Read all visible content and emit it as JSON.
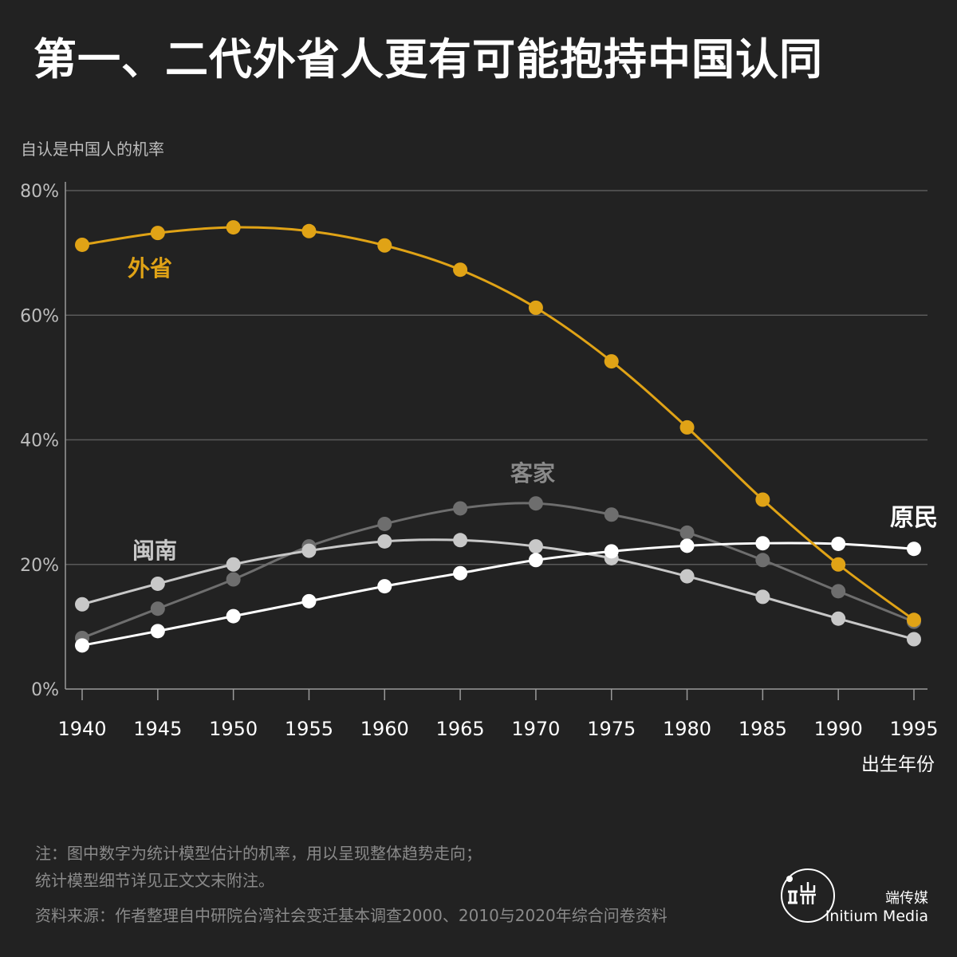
{
  "title": "第一、二代外省人更有可能抱持中国认同",
  "notes": {
    "line1": "注：图中数字为统计模型估计的机率，用以呈现整体趋势走向；",
    "line2": "统计模型细节详见正文文末附注。",
    "source": "资料来源：作者整理自中研院台湾社会变迁基本调查2000、2010与2020年综合问卷资料"
  },
  "brand": {
    "cn": "端传媒",
    "en": "Initium Media",
    "logo_icon": "initium-logo-icon"
  },
  "chart_data": {
    "type": "line",
    "ylabel": "自认是中国人的机率",
    "xlabel": "出生年份",
    "x": [
      1940,
      1945,
      1950,
      1955,
      1960,
      1965,
      1970,
      1975,
      1980,
      1985,
      1990,
      1995
    ],
    "ylim": [
      0,
      80
    ],
    "yticks": [
      0,
      20,
      40,
      60,
      80
    ],
    "ytick_labels": [
      "0%",
      "20%",
      "40%",
      "60%",
      "80%"
    ],
    "grid": true,
    "series": [
      {
        "name": "外省",
        "color": "#e0a316",
        "values": [
          71.3,
          73.2,
          74.1,
          73.5,
          71.2,
          67.3,
          61.2,
          52.6,
          42.0,
          30.4,
          20.0,
          11.1
        ]
      },
      {
        "name": "客家",
        "color": "#6e6e6e",
        "values": [
          8.2,
          12.9,
          17.6,
          22.9,
          26.5,
          29.0,
          29.8,
          28.0,
          25.1,
          20.7,
          15.7,
          10.8
        ]
      },
      {
        "name": "闽南",
        "color": "#c8c8c8",
        "values": [
          13.6,
          16.9,
          20.0,
          22.2,
          23.7,
          23.9,
          22.9,
          21.0,
          18.1,
          14.8,
          11.3,
          8.0
        ]
      },
      {
        "name": "原民",
        "color": "#ffffff",
        "values": [
          7.0,
          9.3,
          11.7,
          14.1,
          16.5,
          18.6,
          20.7,
          22.1,
          23.0,
          23.4,
          23.3,
          22.5
        ]
      }
    ]
  }
}
